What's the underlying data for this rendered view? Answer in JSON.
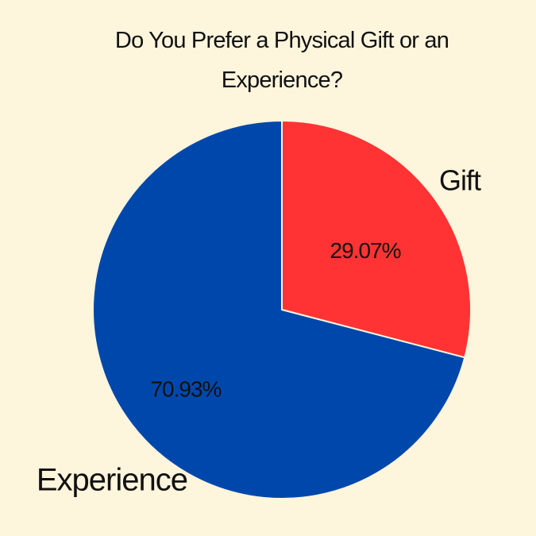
{
  "chart_data": {
    "type": "pie",
    "title": "Do You Prefer a Physical Gift or an Experience?",
    "categories": [
      "Gift",
      "Experience"
    ],
    "values": [
      29.07,
      70.93
    ],
    "value_labels": [
      "29.07%",
      "70.93%"
    ],
    "colors": [
      "#ff3333",
      "#0047ab"
    ]
  }
}
